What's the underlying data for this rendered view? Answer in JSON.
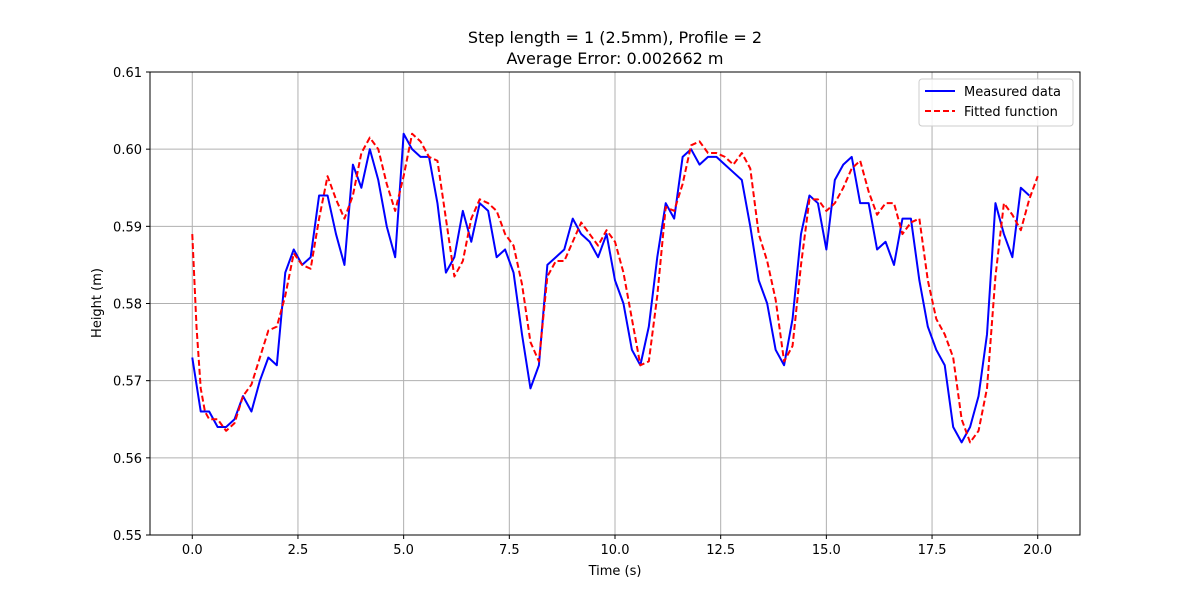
{
  "chart_data": {
    "type": "line",
    "title": "Step length = 1 (2.5mm), Profile = 2",
    "subtitle": "Average Error: 0.002662 m",
    "xlabel": "Time (s)",
    "ylabel": "Height (m)",
    "xlim": [
      -1,
      21
    ],
    "ylim": [
      0.55,
      0.61
    ],
    "xticks": [
      0.0,
      2.5,
      5.0,
      7.5,
      10.0,
      12.5,
      15.0,
      17.5,
      20.0
    ],
    "xtick_labels": [
      "0.0",
      "2.5",
      "5.0",
      "7.5",
      "10.0",
      "12.5",
      "15.0",
      "17.5",
      "20.0"
    ],
    "yticks": [
      0.55,
      0.56,
      0.57,
      0.58,
      0.59,
      0.6,
      0.61
    ],
    "ytick_labels": [
      "0.55",
      "0.56",
      "0.57",
      "0.58",
      "0.59",
      "0.60",
      "0.61"
    ],
    "grid": true,
    "legend_position": "top-right",
    "series": [
      {
        "name": "Measured data",
        "color": "#0000ff",
        "style": "solid",
        "points": [
          [
            0.0,
            0.573
          ],
          [
            0.2,
            0.566
          ],
          [
            0.4,
            0.566
          ],
          [
            0.6,
            0.564
          ],
          [
            0.8,
            0.564
          ],
          [
            1.0,
            0.565
          ],
          [
            1.2,
            0.568
          ],
          [
            1.4,
            0.566
          ],
          [
            1.6,
            0.57
          ],
          [
            1.8,
            0.573
          ],
          [
            2.0,
            0.572
          ],
          [
            2.2,
            0.584
          ],
          [
            2.4,
            0.587
          ],
          [
            2.6,
            0.585
          ],
          [
            2.8,
            0.586
          ],
          [
            3.0,
            0.594
          ],
          [
            3.2,
            0.594
          ],
          [
            3.4,
            0.589
          ],
          [
            3.6,
            0.585
          ],
          [
            3.8,
            0.598
          ],
          [
            4.0,
            0.595
          ],
          [
            4.2,
            0.6
          ],
          [
            4.4,
            0.596
          ],
          [
            4.6,
            0.59
          ],
          [
            4.8,
            0.586
          ],
          [
            5.0,
            0.602
          ],
          [
            5.2,
            0.6
          ],
          [
            5.4,
            0.599
          ],
          [
            5.6,
            0.599
          ],
          [
            5.8,
            0.593
          ],
          [
            6.0,
            0.584
          ],
          [
            6.2,
            0.586
          ],
          [
            6.4,
            0.592
          ],
          [
            6.6,
            0.588
          ],
          [
            6.8,
            0.593
          ],
          [
            7.0,
            0.592
          ],
          [
            7.2,
            0.586
          ],
          [
            7.4,
            0.587
          ],
          [
            7.6,
            0.584
          ],
          [
            7.8,
            0.576
          ],
          [
            8.0,
            0.569
          ],
          [
            8.2,
            0.572
          ],
          [
            8.4,
            0.585
          ],
          [
            8.6,
            0.586
          ],
          [
            8.8,
            0.587
          ],
          [
            9.0,
            0.591
          ],
          [
            9.2,
            0.589
          ],
          [
            9.4,
            0.588
          ],
          [
            9.6,
            0.586
          ],
          [
            9.8,
            0.589
          ],
          [
            10.0,
            0.583
          ],
          [
            10.2,
            0.58
          ],
          [
            10.4,
            0.574
          ],
          [
            10.6,
            0.572
          ],
          [
            10.8,
            0.577
          ],
          [
            11.0,
            0.586
          ],
          [
            11.2,
            0.593
          ],
          [
            11.4,
            0.591
          ],
          [
            11.6,
            0.599
          ],
          [
            11.8,
            0.6
          ],
          [
            12.0,
            0.598
          ],
          [
            12.2,
            0.599
          ],
          [
            12.4,
            0.599
          ],
          [
            12.6,
            0.598
          ],
          [
            12.8,
            0.597
          ],
          [
            13.0,
            0.596
          ],
          [
            13.2,
            0.59
          ],
          [
            13.4,
            0.583
          ],
          [
            13.6,
            0.58
          ],
          [
            13.8,
            0.574
          ],
          [
            14.0,
            0.572
          ],
          [
            14.2,
            0.578
          ],
          [
            14.4,
            0.589
          ],
          [
            14.6,
            0.594
          ],
          [
            14.8,
            0.593
          ],
          [
            15.0,
            0.587
          ],
          [
            15.2,
            0.596
          ],
          [
            15.4,
            0.598
          ],
          [
            15.6,
            0.599
          ],
          [
            15.8,
            0.593
          ],
          [
            16.0,
            0.593
          ],
          [
            16.2,
            0.587
          ],
          [
            16.4,
            0.588
          ],
          [
            16.6,
            0.585
          ],
          [
            16.8,
            0.591
          ],
          [
            17.0,
            0.591
          ],
          [
            17.2,
            0.583
          ],
          [
            17.4,
            0.577
          ],
          [
            17.6,
            0.574
          ],
          [
            17.8,
            0.572
          ],
          [
            18.0,
            0.564
          ],
          [
            18.2,
            0.562
          ],
          [
            18.4,
            0.564
          ],
          [
            18.6,
            0.568
          ],
          [
            18.8,
            0.576
          ],
          [
            19.0,
            0.593
          ],
          [
            19.2,
            0.589
          ],
          [
            19.4,
            0.586
          ],
          [
            19.6,
            0.595
          ],
          [
            19.8,
            0.594
          ]
        ]
      },
      {
        "name": "Fitted function",
        "color": "#ff0000",
        "style": "dashed",
        "points": [
          [
            0.0,
            0.589
          ],
          [
            0.1,
            0.577
          ],
          [
            0.2,
            0.569
          ],
          [
            0.3,
            0.566
          ],
          [
            0.4,
            0.565
          ],
          [
            0.6,
            0.565
          ],
          [
            0.8,
            0.5635
          ],
          [
            1.0,
            0.5645
          ],
          [
            1.2,
            0.568
          ],
          [
            1.4,
            0.5695
          ],
          [
            1.6,
            0.573
          ],
          [
            1.8,
            0.5765
          ],
          [
            2.0,
            0.577
          ],
          [
            2.2,
            0.581
          ],
          [
            2.4,
            0.5865
          ],
          [
            2.6,
            0.585
          ],
          [
            2.8,
            0.5845
          ],
          [
            3.0,
            0.591
          ],
          [
            3.2,
            0.5965
          ],
          [
            3.4,
            0.5935
          ],
          [
            3.6,
            0.591
          ],
          [
            3.8,
            0.594
          ],
          [
            4.0,
            0.5995
          ],
          [
            4.2,
            0.6015
          ],
          [
            4.4,
            0.6
          ],
          [
            4.6,
            0.5955
          ],
          [
            4.8,
            0.592
          ],
          [
            5.0,
            0.5965
          ],
          [
            5.2,
            0.602
          ],
          [
            5.4,
            0.601
          ],
          [
            5.6,
            0.599
          ],
          [
            5.8,
            0.5985
          ],
          [
            6.0,
            0.591
          ],
          [
            6.2,
            0.5835
          ],
          [
            6.4,
            0.5855
          ],
          [
            6.6,
            0.591
          ],
          [
            6.8,
            0.5935
          ],
          [
            7.0,
            0.593
          ],
          [
            7.2,
            0.592
          ],
          [
            7.4,
            0.589
          ],
          [
            7.6,
            0.5875
          ],
          [
            7.8,
            0.5825
          ],
          [
            8.0,
            0.575
          ],
          [
            8.2,
            0.5725
          ],
          [
            8.4,
            0.5835
          ],
          [
            8.6,
            0.5855
          ],
          [
            8.8,
            0.5855
          ],
          [
            9.0,
            0.588
          ],
          [
            9.2,
            0.5905
          ],
          [
            9.4,
            0.589
          ],
          [
            9.6,
            0.5875
          ],
          [
            9.8,
            0.5895
          ],
          [
            10.0,
            0.588
          ],
          [
            10.2,
            0.584
          ],
          [
            10.4,
            0.578
          ],
          [
            10.6,
            0.572
          ],
          [
            10.8,
            0.5725
          ],
          [
            11.0,
            0.581
          ],
          [
            11.2,
            0.5925
          ],
          [
            11.4,
            0.592
          ],
          [
            11.6,
            0.5955
          ],
          [
            11.8,
            0.6005
          ],
          [
            12.0,
            0.601
          ],
          [
            12.2,
            0.5995
          ],
          [
            12.4,
            0.5995
          ],
          [
            12.6,
            0.599
          ],
          [
            12.8,
            0.598
          ],
          [
            13.0,
            0.5995
          ],
          [
            13.2,
            0.5975
          ],
          [
            13.4,
            0.589
          ],
          [
            13.6,
            0.5855
          ],
          [
            13.8,
            0.5805
          ],
          [
            14.0,
            0.5725
          ],
          [
            14.2,
            0.5745
          ],
          [
            14.4,
            0.585
          ],
          [
            14.6,
            0.5935
          ],
          [
            14.8,
            0.5935
          ],
          [
            15.0,
            0.592
          ],
          [
            15.2,
            0.593
          ],
          [
            15.4,
            0.595
          ],
          [
            15.6,
            0.5975
          ],
          [
            15.8,
            0.5985
          ],
          [
            16.0,
            0.5945
          ],
          [
            16.2,
            0.5915
          ],
          [
            16.4,
            0.593
          ],
          [
            16.6,
            0.593
          ],
          [
            16.8,
            0.589
          ],
          [
            17.0,
            0.5905
          ],
          [
            17.2,
            0.591
          ],
          [
            17.4,
            0.583
          ],
          [
            17.6,
            0.578
          ],
          [
            17.8,
            0.576
          ],
          [
            18.0,
            0.573
          ],
          [
            18.2,
            0.565
          ],
          [
            18.4,
            0.562
          ],
          [
            18.6,
            0.5635
          ],
          [
            18.8,
            0.569
          ],
          [
            19.0,
            0.5835
          ],
          [
            19.2,
            0.593
          ],
          [
            19.4,
            0.5915
          ],
          [
            19.6,
            0.5895
          ],
          [
            19.8,
            0.5935
          ],
          [
            20.0,
            0.5965
          ]
        ]
      }
    ]
  }
}
